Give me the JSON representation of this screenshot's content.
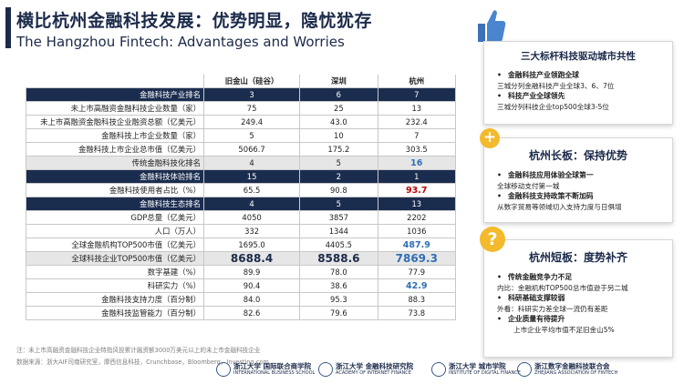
{
  "header": {
    "title_cn": "横比杭州金融科技发展：优势明显，隐忧犹存",
    "title_en": "The Hangzhou Fintech: Advantages and Worries"
  },
  "table": {
    "columns": [
      "",
      "旧金山（硅谷）",
      "深圳",
      "杭州"
    ],
    "rows": [
      {
        "label": "金融科技产业排名",
        "values": [
          "3",
          "6",
          "7"
        ],
        "style": "navy"
      },
      {
        "label": "未上市高融资金融科技企业数量（家）",
        "values": [
          "75",
          "25",
          "13"
        ],
        "style": ""
      },
      {
        "label": "未上市高融资金融科技企业融资总额（亿美元）",
        "values": [
          "249.4",
          "43.0",
          "232.4"
        ],
        "style": ""
      },
      {
        "label": "金融科技上市企业数量（家）",
        "values": [
          "5",
          "10",
          "7"
        ],
        "style": ""
      },
      {
        "label": "金融科技上市企业总市值（亿美元）",
        "values": [
          "5066.7",
          "175.2",
          "303.5"
        ],
        "style": ""
      },
      {
        "label": "传统金融科技化排名",
        "values": [
          "4",
          "5",
          "16"
        ],
        "style": "shade",
        "hl": "blue"
      },
      {
        "label": "金融科技体验排名",
        "values": [
          "15",
          "2",
          "1"
        ],
        "style": "navy"
      },
      {
        "label": "金融科技使用者占比（%）",
        "values": [
          "65.5",
          "90.8",
          "93.7"
        ],
        "style": "",
        "hl": "red"
      },
      {
        "label": "金融科技生态排名",
        "values": [
          "4",
          "5",
          "13"
        ],
        "style": "navy"
      },
      {
        "label": "GDP总量（亿美元）",
        "values": [
          "4050",
          "3857",
          "2202"
        ],
        "style": ""
      },
      {
        "label": "人口（万人）",
        "values": [
          "332",
          "1344",
          "1036"
        ],
        "style": ""
      },
      {
        "label": "全球金融机构TOP500市值（亿美元）",
        "values": [
          "1695.0",
          "4405.5",
          "487.9"
        ],
        "style": "",
        "hl": "blue"
      },
      {
        "label": "全球科技企业TOP500市值（亿美元）",
        "values": [
          "8688.4",
          "8588.6",
          "7869.3"
        ],
        "style": "shade",
        "hl": "big"
      },
      {
        "label": "数字基建（%）",
        "values": [
          "89.9",
          "78.0",
          "77.9"
        ],
        "style": ""
      },
      {
        "label": "科研实力（%）",
        "values": [
          "90.4",
          "38.6",
          "42.9"
        ],
        "style": "",
        "hl": "blue"
      },
      {
        "label": "金融科技支持力度（百分制）",
        "values": [
          "84.0",
          "95.3",
          "88.3"
        ],
        "style": ""
      },
      {
        "label": "金融科技监管能力（百分制）",
        "values": [
          "82.6",
          "79.6",
          "73.8"
        ],
        "style": ""
      }
    ]
  },
  "notes": {
    "note1": "注：未上市高融资金融科技企业特指风投累计融资额3000万美元以上的未上市金融科技企业",
    "note2": "数据来源：浙大AIF司南研究室，摩西信息科技，Crunchbase，Bloomberg，Investing.com"
  },
  "logos": [
    {
      "name": "浙江大学 国际联合商学院",
      "sub": "INTERNATIONAL BUSINESS SCHOOL"
    },
    {
      "name": "浙江大学 金融科技研究院",
      "sub": "ACADEMY OF INTERNET FINANCE"
    },
    {
      "name": "浙江大学 城市学院",
      "sub": "INSTITUTE OF DIGITAL FINANCE"
    },
    {
      "name": "浙江数字金融科技联合会",
      "sub": "ZHEJIANG ASSOCIATION OF FINTECH"
    }
  ],
  "cards": {
    "card1": {
      "title": "三大标杆科技驱动城市共性",
      "b1": "金融科技产业领跑全球",
      "s1": "三城分列金融科技产业全球3、6、7位",
      "b2": "科技产业全球领先",
      "s2": "三城分列科技企业top500全球3-5位"
    },
    "card2": {
      "icon": "+",
      "title": "杭州长板：保持优势",
      "b1": "金融科技应用体验全球第一",
      "s1": "全球移动支付第一城",
      "b2": "金融科技支持政策不断加码",
      "s2": "从数字贸易等领域切入支持力度与日俱增"
    },
    "card3": {
      "icon": "?",
      "title": "杭州短板：度势补齐",
      "b1": "传统金融竞争力不足",
      "s1": "内比：金融机构TOP500总市值逊于另二城",
      "b2": "科研基础支撑较弱",
      "s2": "外看：科研实力差全球一流仍有差距",
      "b3": "企业质量有待提升",
      "s3": "上市企业平均市值不足旧金山5%"
    }
  },
  "colors": {
    "navy": "#1b2d4f",
    "accent": "#2f6fb4",
    "highlight_red": "#c00000",
    "gold": "#f2ba2c"
  }
}
